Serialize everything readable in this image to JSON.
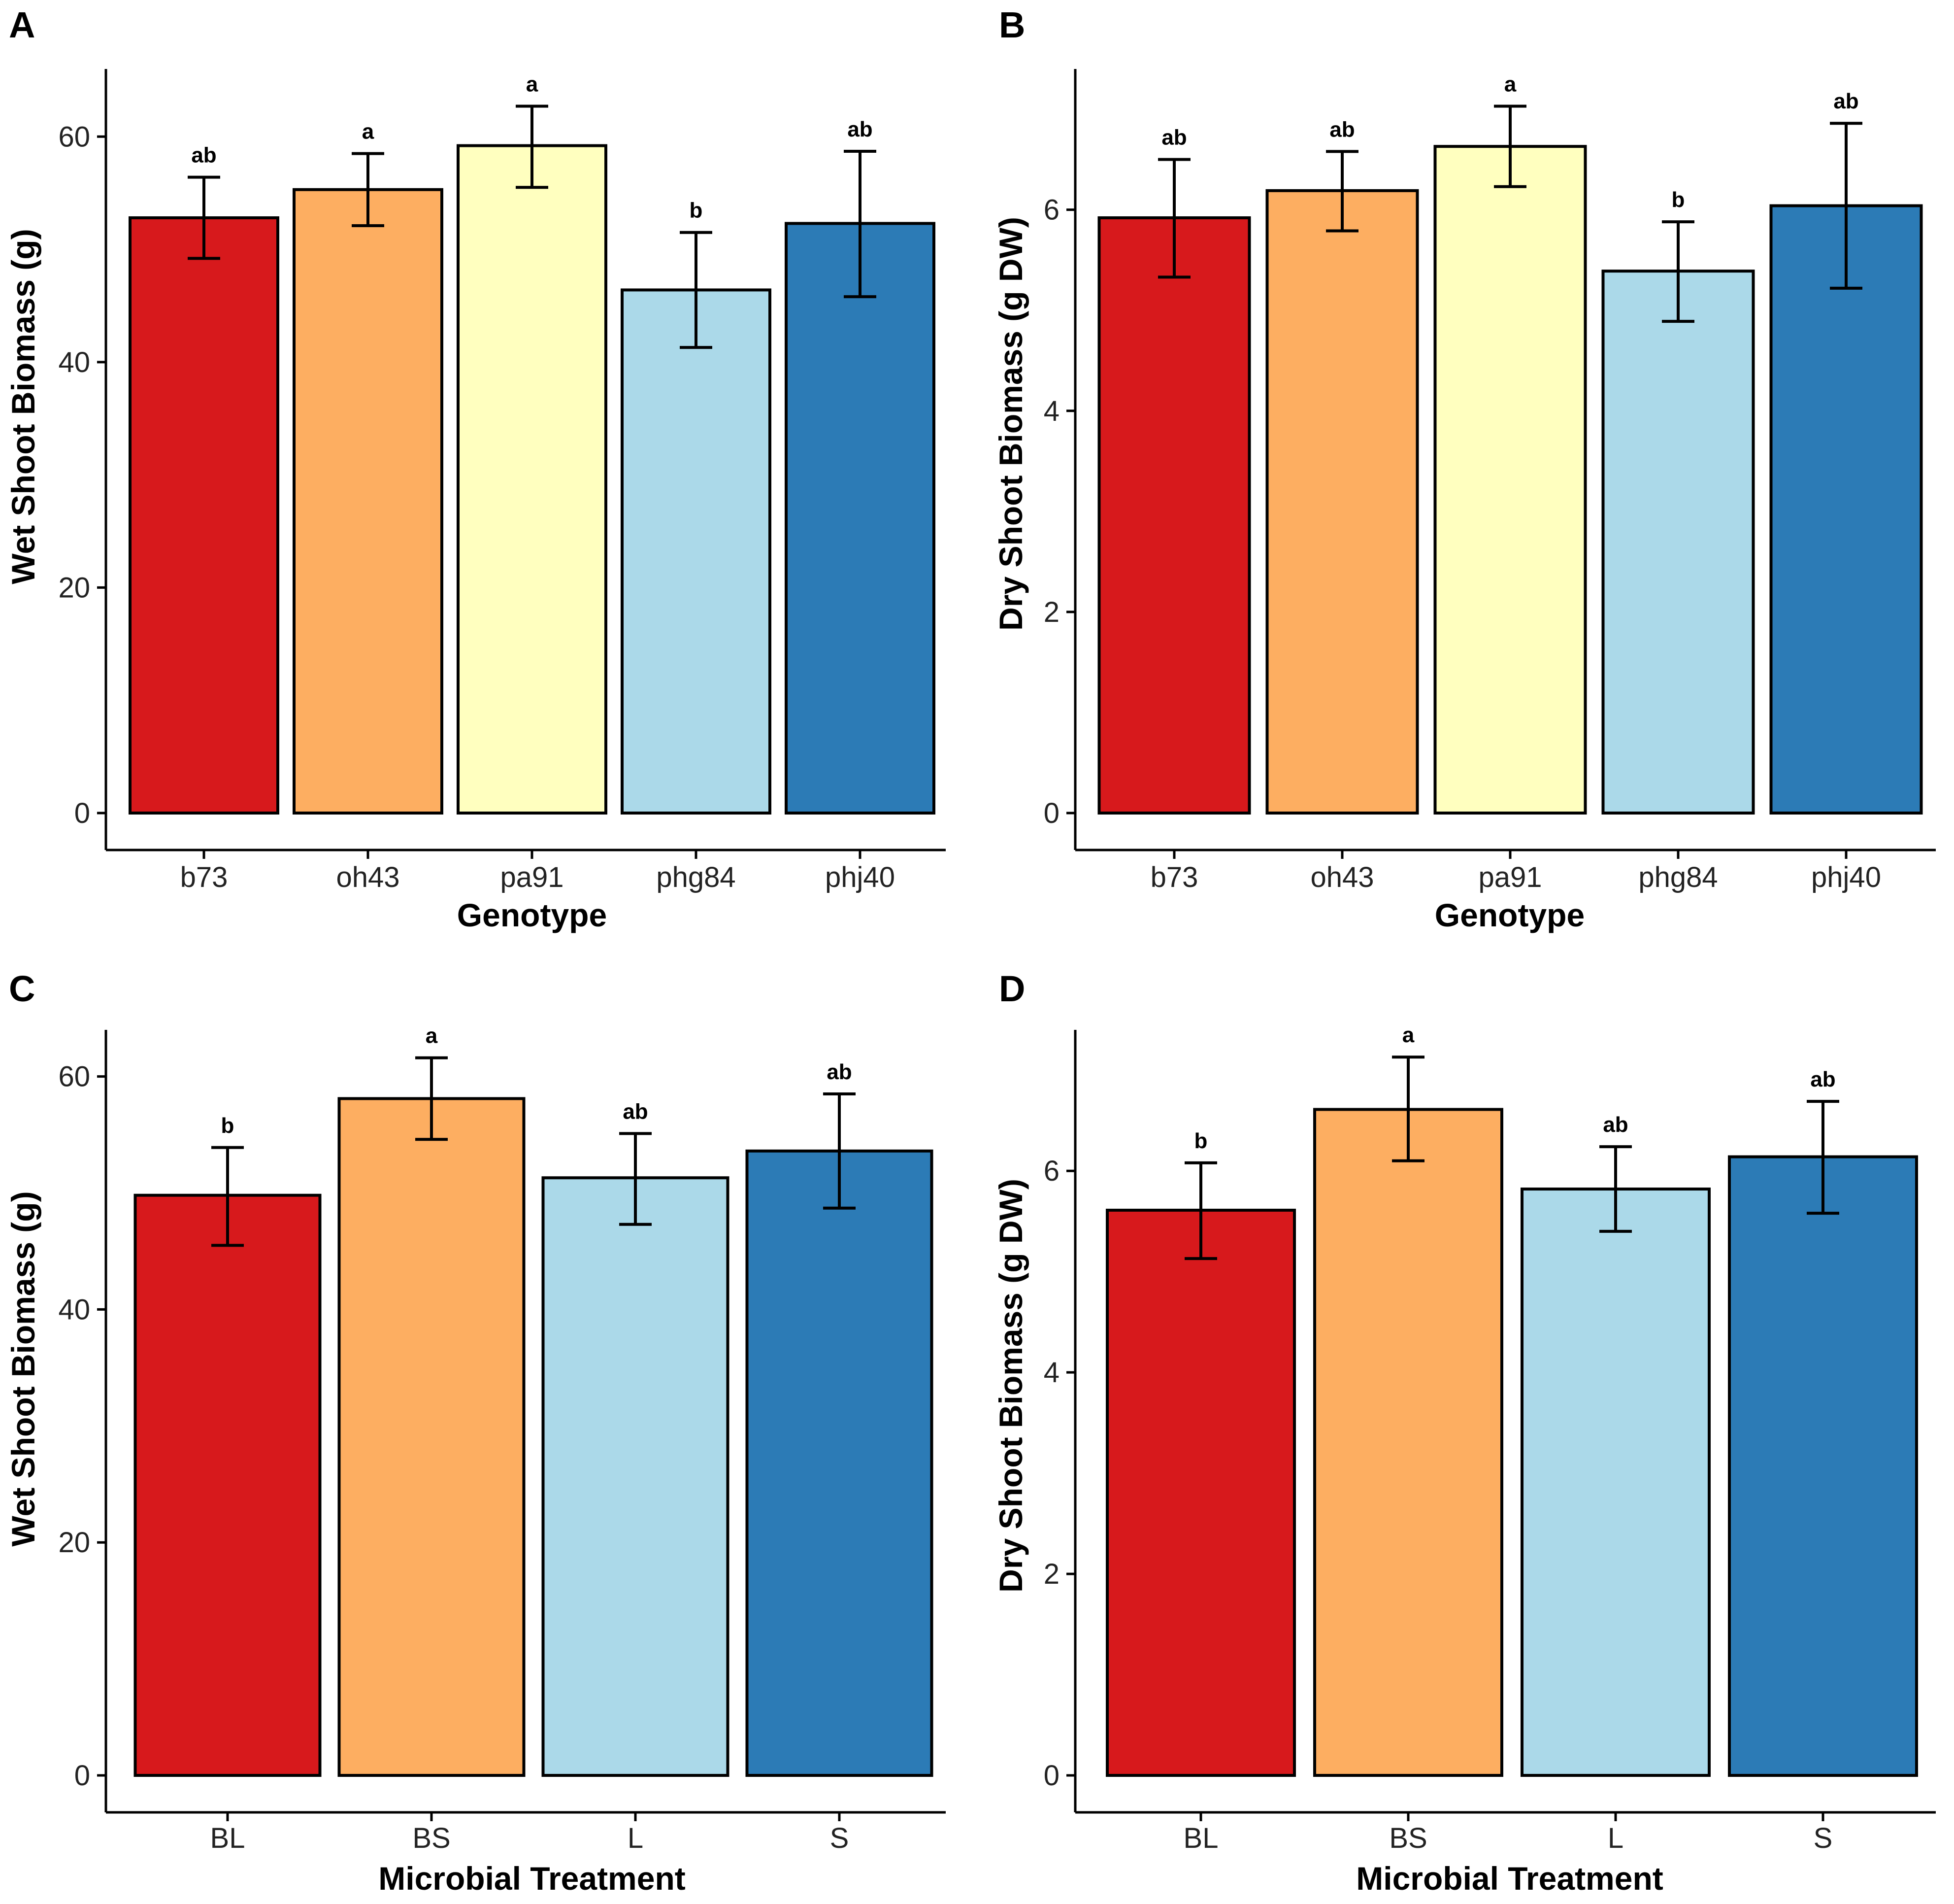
{
  "chart_data": [
    {
      "panel": "A",
      "type": "bar",
      "xlabel": "Genotype",
      "ylabel": "Wet Shoot Biomass (g)",
      "ylim": [
        0,
        66
      ],
      "yticks": [
        0,
        20,
        40,
        60
      ],
      "categories": [
        "b73",
        "oh43",
        "pa91",
        "phg84",
        "phj40"
      ],
      "values": [
        52.8,
        55.3,
        59.2,
        46.4,
        52.3
      ],
      "error_low": [
        49.2,
        52.1,
        55.5,
        41.3,
        45.8
      ],
      "error_high": [
        56.4,
        58.5,
        62.7,
        51.5,
        58.7
      ],
      "significance": [
        "ab",
        "a",
        "a",
        "b",
        "ab"
      ],
      "colors": [
        "#d7191c",
        "#fdae61",
        "#ffffbf",
        "#abd9e9",
        "#2c7bb6"
      ]
    },
    {
      "panel": "B",
      "type": "bar",
      "xlabel": "Genotype",
      "ylabel": "Dry Shoot Biomass (g DW)",
      "ylim": [
        0,
        7.4
      ],
      "yticks": [
        0,
        2,
        4,
        6
      ],
      "categories": [
        "b73",
        "oh43",
        "pa91",
        "phg84",
        "phj40"
      ],
      "values": [
        5.92,
        6.19,
        6.63,
        5.39,
        6.04
      ],
      "error_low": [
        5.33,
        5.79,
        6.23,
        4.89,
        5.22
      ],
      "error_high": [
        6.5,
        6.58,
        7.03,
        5.88,
        6.86
      ],
      "significance": [
        "ab",
        "ab",
        "a",
        "b",
        "ab"
      ],
      "colors": [
        "#d7191c",
        "#fdae61",
        "#ffffbf",
        "#abd9e9",
        "#2c7bb6"
      ]
    },
    {
      "panel": "C",
      "type": "bar",
      "xlabel": "Microbial Treatment",
      "ylabel": "Wet Shoot Biomass (g)",
      "ylim": [
        0,
        64
      ],
      "yticks": [
        0,
        20,
        40,
        60
      ],
      "categories": [
        "BL",
        "BS",
        "L",
        "S"
      ],
      "values": [
        49.8,
        58.1,
        51.3,
        53.6
      ],
      "error_low": [
        45.5,
        54.6,
        47.3,
        48.7
      ],
      "error_high": [
        53.9,
        61.6,
        55.1,
        58.5
      ],
      "significance": [
        "b",
        "a",
        "ab",
        "ab"
      ],
      "colors": [
        "#d7191c",
        "#fdae61",
        "#abd9e9",
        "#2c7bb6"
      ]
    },
    {
      "panel": "D",
      "type": "bar",
      "xlabel": "Microbial Treatment",
      "ylabel": "Dry Shoot Biomass (g DW)",
      "ylim": [
        0,
        7.4
      ],
      "yticks": [
        0,
        2,
        4,
        6
      ],
      "categories": [
        "BL",
        "BS",
        "L",
        "S"
      ],
      "values": [
        5.61,
        6.61,
        5.82,
        6.14
      ],
      "error_low": [
        5.13,
        6.1,
        5.4,
        5.58
      ],
      "error_high": [
        6.08,
        7.13,
        6.24,
        6.69
      ],
      "significance": [
        "b",
        "a",
        "ab",
        "ab"
      ],
      "colors": [
        "#d7191c",
        "#fdae61",
        "#abd9e9",
        "#2c7bb6"
      ]
    }
  ]
}
